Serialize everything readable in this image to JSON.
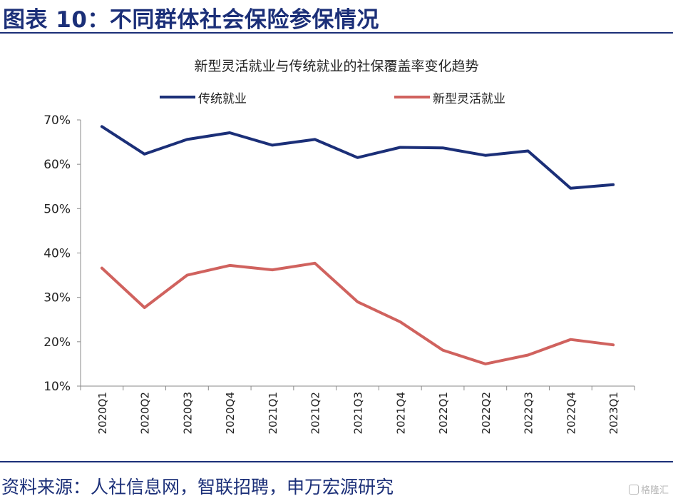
{
  "figure": {
    "title": "图表 10：不同群体社会保险参保情况",
    "source": "资料来源：人社信息网，智联招聘，申万宏源研究",
    "watermark": "格隆汇"
  },
  "colors": {
    "accent": "#1b2f78",
    "series_traditional": "#1b2f78",
    "series_new": "#d0625e",
    "axis": "#8a8a8a"
  },
  "chart_data": {
    "type": "line",
    "title": "新型灵活就业与传统就业的社保覆盖率变化趋势",
    "categories": [
      "2020Q1",
      "2020Q2",
      "2020Q3",
      "2020Q4",
      "2021Q1",
      "2021Q2",
      "2021Q3",
      "2021Q4",
      "2022Q1",
      "2022Q2",
      "2022Q3",
      "2022Q4",
      "2023Q1"
    ],
    "ylim": [
      0.1,
      0.7
    ],
    "yticks": [
      "10%",
      "20%",
      "30%",
      "40%",
      "50%",
      "60%",
      "70%"
    ],
    "grid": false,
    "legend_position": "top",
    "series": [
      {
        "name": "传统就业",
        "values": [
          0.685,
          0.623,
          0.656,
          0.671,
          0.643,
          0.656,
          0.615,
          0.638,
          0.637,
          0.62,
          0.63,
          0.546,
          0.554
        ]
      },
      {
        "name": "新型灵活就业",
        "values": [
          0.366,
          0.277,
          0.35,
          0.372,
          0.362,
          0.377,
          0.29,
          0.245,
          0.181,
          0.15,
          0.17,
          0.205,
          0.193
        ]
      }
    ]
  }
}
